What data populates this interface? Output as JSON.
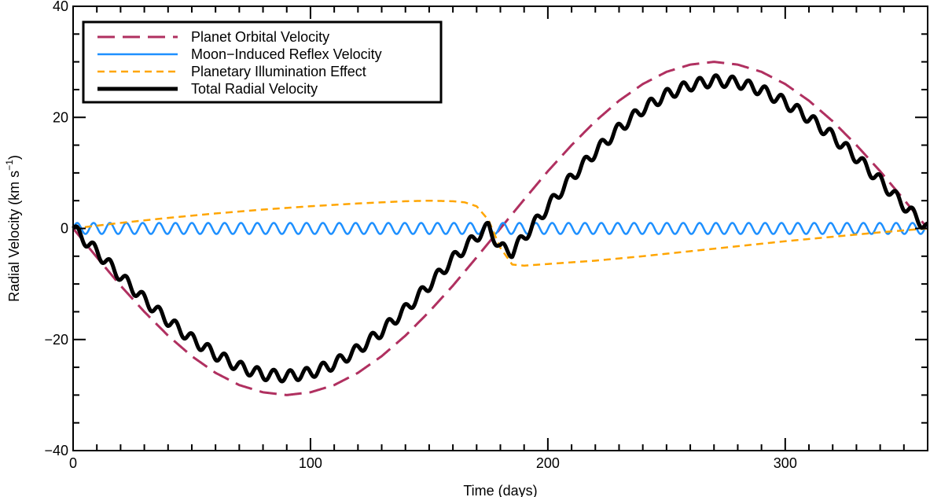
{
  "chart_data": {
    "type": "line",
    "title": "",
    "xlabel": "Time (days)",
    "ylabel": {
      "main": "Radial Velocity (km s",
      "sup": "−1",
      "close": ")"
    },
    "xlim": [
      0,
      360
    ],
    "ylim": [
      -40,
      40
    ],
    "x_ticks": [
      {
        "value": 0,
        "label": "0"
      },
      {
        "value": 100,
        "label": "100"
      },
      {
        "value": 200,
        "label": "200"
      },
      {
        "value": 300,
        "label": "300"
      }
    ],
    "y_ticks": [
      {
        "value": -40,
        "label": "−40"
      },
      {
        "value": -20,
        "label": "−20"
      },
      {
        "value": 0,
        "label": "0"
      },
      {
        "value": 20,
        "label": "20"
      },
      {
        "value": 40,
        "label": "40"
      }
    ],
    "x_minor_step": 10,
    "y_minor_step": 5,
    "grid": false,
    "legend_position": "top-left",
    "legend": [
      "Planet Orbital Velocity",
      "Moon−Induced Reflex Velocity",
      "Planetary Illumination Effect",
      "Total Radial Velocity"
    ],
    "series": [
      {
        "name": "Planet Orbital Velocity",
        "color": "#b03060",
        "dash": "long-dashed",
        "x": [
          0,
          10,
          20,
          30,
          40,
          50,
          60,
          70,
          80,
          90,
          100,
          110,
          120,
          130,
          140,
          150,
          160,
          170,
          180,
          190,
          200,
          210,
          220,
          230,
          240,
          250,
          260,
          270,
          280,
          290,
          300,
          310,
          320,
          330,
          340,
          350,
          360
        ],
        "values": [
          0,
          -5.2,
          -10.3,
          -15.0,
          -19.3,
          -23.0,
          -26.0,
          -28.2,
          -29.5,
          -30.0,
          -29.5,
          -28.2,
          -26.0,
          -23.0,
          -19.3,
          -15.0,
          -10.3,
          -5.2,
          0,
          5.2,
          10.3,
          15.0,
          19.3,
          23.0,
          26.0,
          28.2,
          29.5,
          30.0,
          29.5,
          28.2,
          26.0,
          23.0,
          19.3,
          15.0,
          10.3,
          5.2,
          0
        ]
      },
      {
        "name": "Moon−Induced Reflex Velocity",
        "color": "#1e90ff",
        "dash": "solid",
        "amplitude": 1.0,
        "period_days": 6.9,
        "cycles": 52
      },
      {
        "name": "Planetary Illumination Effect",
        "color": "#ffa500",
        "dash": "dashed",
        "x": [
          0,
          20,
          40,
          60,
          80,
          100,
          120,
          140,
          150,
          160,
          165,
          170,
          175,
          180,
          185,
          190,
          200,
          220,
          240,
          260,
          280,
          300,
          320,
          340,
          360
        ],
        "values": [
          0,
          1.0,
          1.9,
          2.7,
          3.4,
          4.0,
          4.5,
          4.9,
          5.0,
          4.9,
          4.7,
          4.0,
          1.5,
          -3.5,
          -6.5,
          -6.7,
          -6.4,
          -5.8,
          -5.0,
          -4.1,
          -3.2,
          -2.3,
          -1.5,
          -0.7,
          0
        ]
      },
      {
        "name": "Total Radial Velocity",
        "color": "#000000",
        "dash": "solid",
        "x": [
          0,
          10,
          20,
          30,
          40,
          50,
          60,
          70,
          80,
          90,
          100,
          110,
          120,
          130,
          140,
          150,
          160,
          170,
          175,
          180,
          185,
          190,
          200,
          210,
          220,
          230,
          240,
          250,
          260,
          270,
          280,
          290,
          300,
          310,
          320,
          330,
          340,
          350,
          360
        ],
        "values": [
          0,
          -4.2,
          -8.6,
          -12.8,
          -16.6,
          -19.9,
          -22.7,
          -24.9,
          -26.3,
          -26.6,
          -26.0,
          -24.4,
          -21.8,
          -18.5,
          -14.6,
          -10.2,
          -5.5,
          -1.4,
          0.2,
          -3.5,
          -4.2,
          -1.5,
          3.9,
          9.2,
          13.8,
          18.0,
          21.5,
          24.1,
          25.8,
          26.6,
          26.3,
          24.9,
          22.7,
          19.9,
          16.6,
          12.8,
          8.6,
          4.2,
          0
        ],
        "ripple_amplitude": 1.0,
        "ripple_period_days": 6.9
      }
    ]
  }
}
